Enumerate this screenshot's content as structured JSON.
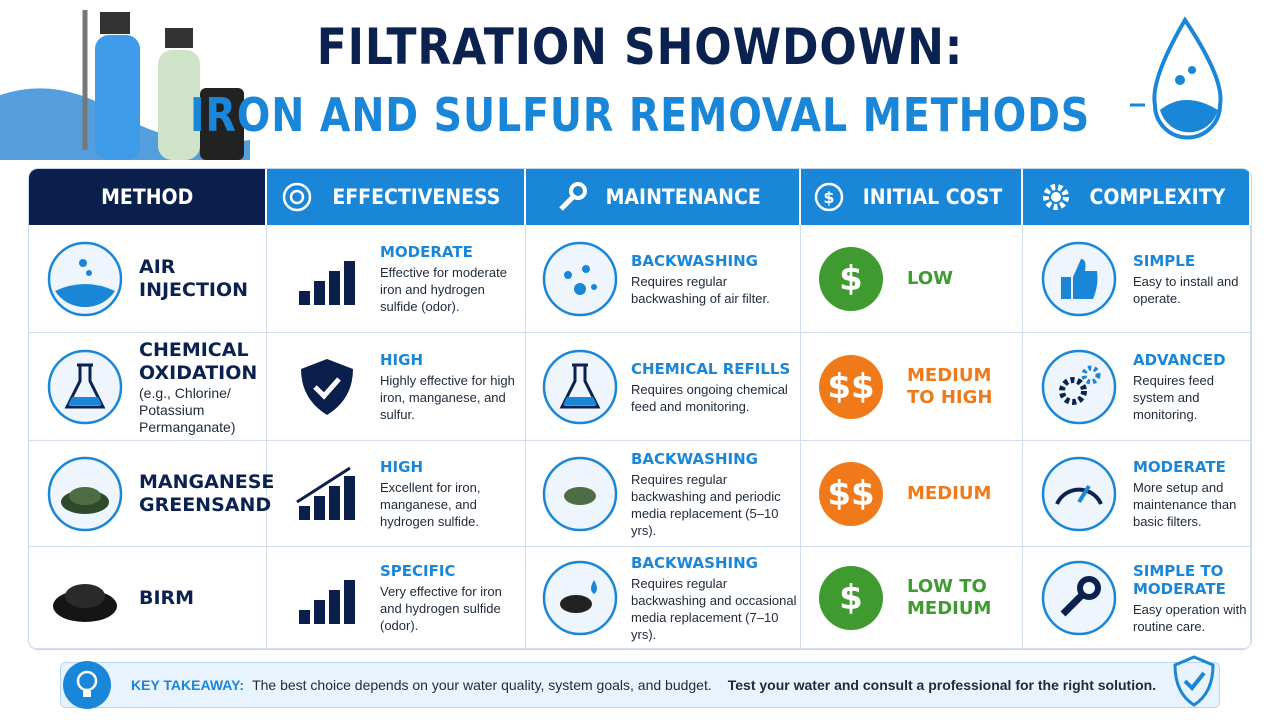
{
  "header": {
    "title_line1": "FILTRATION SHOWDOWN:",
    "title_line2": "IRON AND SULFUR REMOVAL METHODS"
  },
  "table": {
    "columns": [
      "METHOD",
      "EFFECTIVENESS",
      "MAINTENANCE",
      "INITIAL COST",
      "COMPLEXITY"
    ],
    "rows": [
      {
        "method": "AIR INJECTION",
        "effectiveness": {
          "level": "MODERATE",
          "text": "Effective for moderate iron and hydrogen sulfide (odor)."
        },
        "maintenance": {
          "level": "BACKWASHING",
          "text": "Requires regular backwashing of air filter."
        },
        "cost": {
          "symbol": "$",
          "level": "LOW",
          "color": "#3f9a2f"
        },
        "complexity": {
          "level": "SIMPLE",
          "text": "Easy to install and operate."
        }
      },
      {
        "method": "CHEMICAL OXIDATION",
        "note": "(e.g., Chlorine/ Potassium Permanganate)",
        "effectiveness": {
          "level": "HIGH",
          "text": "Highly effective for high iron, manganese, and sulfur."
        },
        "maintenance": {
          "level": "CHEMICAL REFILLS",
          "text": "Requires ongoing chemical feed and monitoring."
        },
        "cost": {
          "symbol": "$$",
          "level": "MEDIUM TO HIGH",
          "color": "#f07a1a"
        },
        "complexity": {
          "level": "ADVANCED",
          "text": "Requires feed system and monitoring."
        }
      },
      {
        "method": "MANGANESE GREENSAND",
        "effectiveness": {
          "level": "HIGH",
          "text": "Excellent for iron, manganese, and hydrogen sulfide."
        },
        "maintenance": {
          "level": "BACKWASHING",
          "text": "Requires regular backwashing and periodic media replacement (5–10 yrs)."
        },
        "cost": {
          "symbol": "$$",
          "level": "MEDIUM",
          "color": "#f07a1a"
        },
        "complexity": {
          "level": "MODERATE",
          "text": "More setup and maintenance than basic filters."
        }
      },
      {
        "method": "BIRM",
        "effectiveness": {
          "level": "SPECIFIC",
          "text": "Very effective for iron and hydrogen sulfide (odor)."
        },
        "maintenance": {
          "level": "BACKWASHING",
          "text": "Requires regular backwashing and occasional media replacement (7–10 yrs)."
        },
        "cost": {
          "symbol": "$",
          "level": "LOW TO MEDIUM",
          "color": "#3f9a2f"
        },
        "complexity": {
          "level": "SIMPLE TO MODERATE",
          "text": "Easy operation with routine care."
        }
      }
    ]
  },
  "footer": {
    "label": "KEY TAKEAWAY:",
    "text": "The best choice depends on your water quality, system goals, and budget.",
    "emphasis": "Test your water and consult a professional for the right solution."
  }
}
